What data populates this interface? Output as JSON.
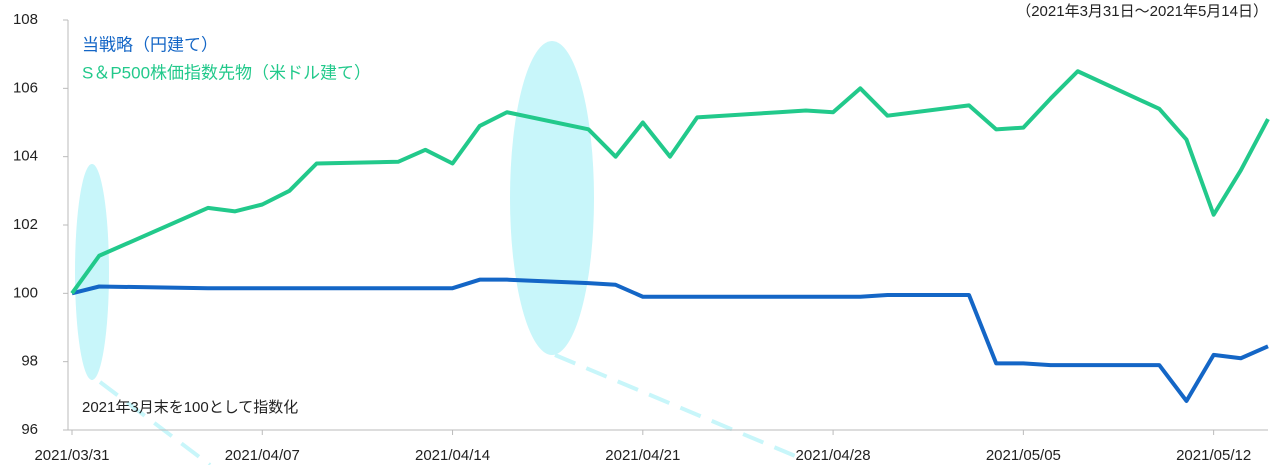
{
  "chart_data": {
    "type": "line",
    "subtitle": "（2021年3月31日～2021年5月14日）",
    "annotation": "2021年3月末を100として指数化",
    "x": [
      "2021/03/31",
      "2021/04/01",
      "2021/04/05",
      "2021/04/06",
      "2021/04/07",
      "2021/04/08",
      "2021/04/09",
      "2021/04/12",
      "2021/04/13",
      "2021/04/14",
      "2021/04/15",
      "2021/04/16",
      "2021/04/19",
      "2021/04/20",
      "2021/04/21",
      "2021/04/22",
      "2021/04/23",
      "2021/04/26",
      "2021/04/27",
      "2021/04/28",
      "2021/04/29",
      "2021/04/30",
      "2021/05/03",
      "2021/05/04",
      "2021/05/05",
      "2021/05/06",
      "2021/05/07",
      "2021/05/10",
      "2021/05/11",
      "2021/05/12",
      "2021/05/13",
      "2021/05/14"
    ],
    "series": [
      {
        "name": "当戦略（円建て）",
        "color": "#1466c6",
        "values": [
          100,
          100.2,
          100.15,
          100.15,
          100.15,
          100.15,
          100.15,
          100.15,
          100.15,
          100.15,
          100.4,
          100.4,
          100.3,
          100.25,
          99.9,
          99.9,
          99.9,
          99.9,
          99.9,
          99.9,
          99.9,
          99.95,
          99.95,
          97.95,
          97.95,
          97.9,
          97.9,
          97.9,
          96.85,
          98.2,
          98.1,
          98.45
        ]
      },
      {
        "name": "S＆P500株価指数先物（米ドル建て）",
        "color": "#22c98b",
        "values": [
          100,
          101.1,
          102.5,
          102.4,
          102.6,
          103.0,
          103.8,
          103.85,
          104.2,
          103.8,
          104.9,
          105.3,
          104.8,
          104.0,
          105.0,
          104.0,
          105.15,
          105.3,
          105.35,
          105.3,
          106.0,
          105.2,
          105.5,
          104.8,
          104.85,
          105.7,
          106.5,
          105.4,
          104.5,
          102.3,
          103.6,
          105.1
        ]
      }
    ],
    "xlim": [
      "2021/03/31",
      "2021/05/14"
    ],
    "xticks": [
      "2021/03/31",
      "2021/04/07",
      "2021/04/14",
      "2021/04/21",
      "2021/04/28",
      "2021/05/05",
      "2021/05/12"
    ],
    "ylim": [
      96,
      108
    ],
    "yticks": [
      96,
      98,
      100,
      102,
      104,
      106,
      108
    ]
  }
}
